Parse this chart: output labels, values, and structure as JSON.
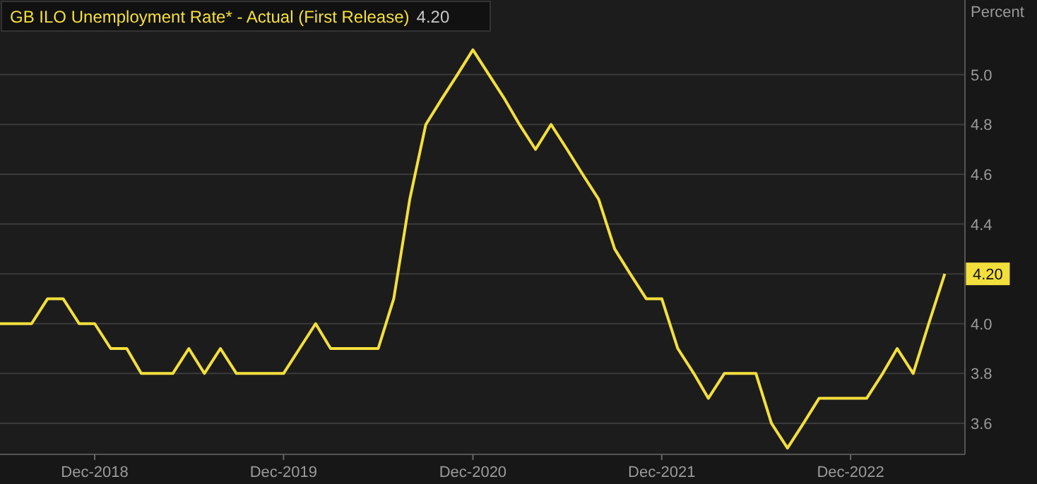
{
  "chart_data": {
    "type": "line",
    "title": "GB ILO Unemployment Rate* - Actual (First Release)",
    "ylabel": "Percent",
    "x": [
      "2018-06",
      "2018-07",
      "2018-08",
      "2018-09",
      "2018-10",
      "2018-11",
      "2018-12",
      "2019-01",
      "2019-02",
      "2019-03",
      "2019-04",
      "2019-05",
      "2019-06",
      "2019-07",
      "2019-08",
      "2019-09",
      "2019-10",
      "2019-11",
      "2019-12",
      "2020-01",
      "2020-02",
      "2020-03",
      "2020-04",
      "2020-05",
      "2020-06",
      "2020-07",
      "2020-08",
      "2020-09",
      "2020-10",
      "2020-11",
      "2020-12",
      "2021-01",
      "2021-02",
      "2021-03",
      "2021-04",
      "2021-05",
      "2021-06",
      "2021-07",
      "2021-08",
      "2021-09",
      "2021-10",
      "2021-11",
      "2021-12",
      "2022-01",
      "2022-02",
      "2022-03",
      "2022-04",
      "2022-05",
      "2022-06",
      "2022-07",
      "2022-08",
      "2022-09",
      "2022-10",
      "2022-11",
      "2022-12",
      "2023-01",
      "2023-02",
      "2023-03",
      "2023-04",
      "2023-05",
      "2023-06"
    ],
    "series": [
      {
        "color": "#f3df3c",
        "values": [
          4.0,
          4.0,
          4.0,
          4.1,
          4.1,
          4.0,
          4.0,
          3.9,
          3.9,
          3.8,
          3.8,
          3.8,
          3.9,
          3.8,
          3.9,
          3.8,
          3.8,
          3.8,
          3.8,
          3.9,
          4.0,
          3.9,
          3.9,
          3.9,
          3.9,
          4.1,
          4.5,
          4.8,
          4.9,
          5.0,
          5.1,
          5.0,
          4.9,
          4.8,
          4.7,
          4.8,
          4.7,
          4.6,
          4.5,
          4.3,
          4.2,
          4.1,
          4.1,
          3.9,
          3.8,
          3.7,
          3.8,
          3.8,
          3.8,
          3.6,
          3.5,
          3.6,
          3.7,
          3.7,
          3.7,
          3.7,
          3.8,
          3.9,
          3.8,
          4.0,
          4.2
        ]
      }
    ],
    "xlim": [
      "2018-06-01",
      "2023-07-10"
    ],
    "xticks": [
      {
        "value": "2018-12",
        "label": "Dec-2018"
      },
      {
        "value": "2019-12",
        "label": "Dec-2019"
      },
      {
        "value": "2020-12",
        "label": "Dec-2020"
      },
      {
        "value": "2021-12",
        "label": "Dec-2021"
      },
      {
        "value": "2022-12",
        "label": "Dec-2022"
      }
    ],
    "ylim": [
      3.475,
      5.3
    ],
    "yticks": [
      {
        "value": 3.6,
        "label": "3.6"
      },
      {
        "value": 3.8,
        "label": "3.8"
      },
      {
        "value": 4,
        "label": "4.0"
      },
      {
        "value": 4.2,
        "label": null
      },
      {
        "value": 4.4,
        "label": "4.4"
      },
      {
        "value": 4.6,
        "label": "4.6"
      },
      {
        "value": 4.8,
        "label": "4.8"
      },
      {
        "value": 5,
        "label": "5.0"
      }
    ],
    "grid": "y",
    "marker": "none",
    "line_style": "solid",
    "annotations": [
      {
        "text": "4.20",
        "x": "2023-06",
        "y": 4.2
      },
      "4.20"
    ]
  }
}
